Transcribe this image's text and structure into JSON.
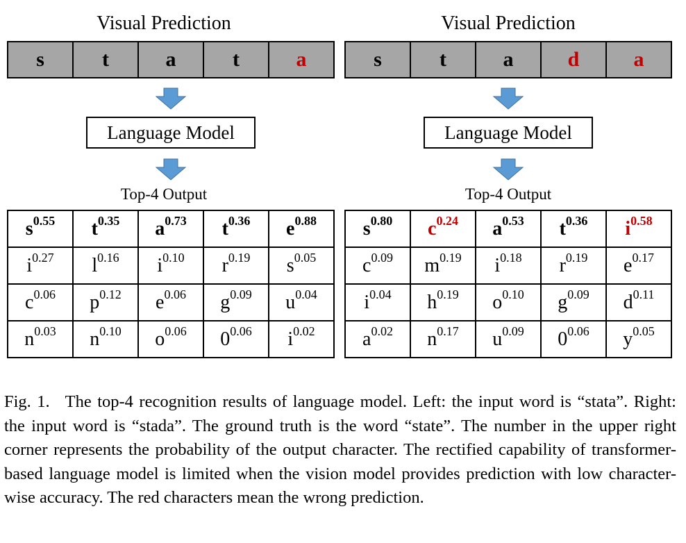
{
  "panels": [
    {
      "visual_title": "Visual Prediction",
      "prediction": [
        {
          "char": "s",
          "wrong": false
        },
        {
          "char": "t",
          "wrong": false
        },
        {
          "char": "a",
          "wrong": false
        },
        {
          "char": "t",
          "wrong": false
        },
        {
          "char": "a",
          "wrong": true
        }
      ],
      "lm_label": "Language Model",
      "top4_title": "Top-4 Output",
      "top4": [
        [
          {
            "c": "s",
            "p": "0.55",
            "wrong": false
          },
          {
            "c": "t",
            "p": "0.35",
            "wrong": false
          },
          {
            "c": "a",
            "p": "0.73",
            "wrong": false
          },
          {
            "c": "t",
            "p": "0.36",
            "wrong": false
          },
          {
            "c": "e",
            "p": "0.88",
            "wrong": false
          }
        ],
        [
          {
            "c": "i",
            "p": "0.27"
          },
          {
            "c": "l",
            "p": "0.16"
          },
          {
            "c": "i",
            "p": "0.10"
          },
          {
            "c": "r",
            "p": "0.19"
          },
          {
            "c": "s",
            "p": "0.05"
          }
        ],
        [
          {
            "c": "c",
            "p": "0.06"
          },
          {
            "c": "p",
            "p": "0.12"
          },
          {
            "c": "e",
            "p": "0.06"
          },
          {
            "c": "g",
            "p": "0.09"
          },
          {
            "c": "u",
            "p": "0.04"
          }
        ],
        [
          {
            "c": "n",
            "p": "0.03"
          },
          {
            "c": "n",
            "p": "0.10"
          },
          {
            "c": "o",
            "p": "0.06"
          },
          {
            "c": "0",
            "p": "0.06"
          },
          {
            "c": "i",
            "p": "0.02"
          }
        ]
      ]
    },
    {
      "visual_title": "Visual Prediction",
      "prediction": [
        {
          "char": "s",
          "wrong": false
        },
        {
          "char": "t",
          "wrong": false
        },
        {
          "char": "a",
          "wrong": false
        },
        {
          "char": "d",
          "wrong": true
        },
        {
          "char": "a",
          "wrong": true
        }
      ],
      "lm_label": "Language Model",
      "top4_title": "Top-4 Output",
      "top4": [
        [
          {
            "c": "s",
            "p": "0.80",
            "wrong": false
          },
          {
            "c": "c",
            "p": "0.24",
            "wrong": true
          },
          {
            "c": "a",
            "p": "0.53",
            "wrong": false
          },
          {
            "c": "t",
            "p": "0.36",
            "wrong": false
          },
          {
            "c": "i",
            "p": "0.58",
            "wrong": true
          }
        ],
        [
          {
            "c": "c",
            "p": "0.09"
          },
          {
            "c": "m",
            "p": "0.19"
          },
          {
            "c": "i",
            "p": "0.18"
          },
          {
            "c": "r",
            "p": "0.19"
          },
          {
            "c": "e",
            "p": "0.17"
          }
        ],
        [
          {
            "c": "i",
            "p": "0.04"
          },
          {
            "c": "h",
            "p": "0.19"
          },
          {
            "c": "o",
            "p": "0.10"
          },
          {
            "c": "g",
            "p": "0.09"
          },
          {
            "c": "d",
            "p": "0.11"
          }
        ],
        [
          {
            "c": "a",
            "p": "0.02"
          },
          {
            "c": "n",
            "p": "0.17"
          },
          {
            "c": "u",
            "p": "0.09"
          },
          {
            "c": "0",
            "p": "0.06"
          },
          {
            "c": "y",
            "p": "0.05"
          }
        ]
      ]
    }
  ],
  "caption": {
    "label": "Fig. 1.",
    "text": "The top-4 recognition results of language model. Left: the input word is “stata”. Right: the input word is “stada”. The ground truth is the word “state”. The number in the upper right corner represents the probability of the output character. The rectified capability of transformer-based language model is limited when the vision model provides prediction with low character-wise accuracy. The red characters mean the wrong prediction."
  },
  "colors": {
    "wrong": "#c00000",
    "prediction_bg": "#a6a6a6",
    "arrow": "#5b9bd5"
  },
  "icons": {
    "arrow": "down-arrow-icon"
  }
}
